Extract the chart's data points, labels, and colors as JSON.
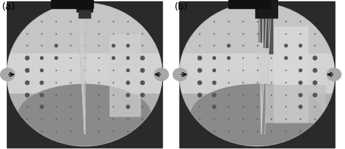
{
  "fig_width": 5.0,
  "fig_height": 2.17,
  "dpi": 100,
  "bg_color": "#ffffff",
  "label_a": "(a)",
  "label_b": "(b)",
  "label_fontsize": 10,
  "outer_bg": "#2a2a2a",
  "circle_bg": "#b8b8b8",
  "upper_bg": "#c8c8c8",
  "tissue_band": "#d8d8d8",
  "tissue_bottom": "#909090",
  "dot_color": "#555555",
  "dot_large_color": "#444444",
  "needle_color": "#cccccc",
  "arrow_circle_color": "#a0a0a0",
  "arrow_color": "#222222",
  "device_dark": "#222222",
  "white_strip": "#e0e0e0"
}
